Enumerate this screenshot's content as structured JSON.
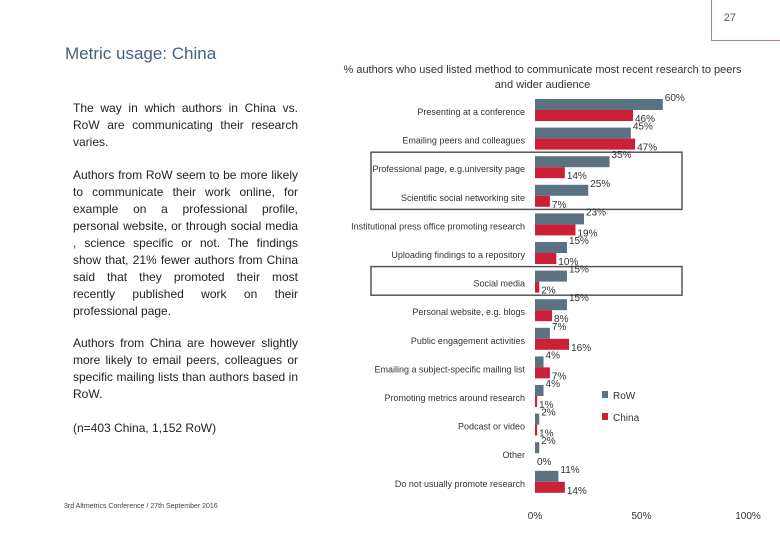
{
  "page": {
    "number": "27",
    "title": "Metric usage: China",
    "paragraphs": [
      "The way in which authors in China vs. RoW are communicating their research varies.",
      "Authors from RoW seem to be more likely to communicate their work online, for example on a professional profile, personal website, or through social media , science specific or not. The findings show that, 21% fewer authors from China said that they promoted their most recently published work on their professional page.",
      "Authors from China are however slightly more likely to email peers, colleagues or specific mailing lists than authors based in RoW.",
      "(n=403 China, 1,152 RoW)"
    ],
    "footer_sup": "3rd",
    "footer": " Altmetrics Conference / 27th September 2016"
  },
  "colors": {
    "row": "#5b7282",
    "china": "#cc1f38",
    "highlight": "#555555"
  },
  "chart_data": {
    "type": "bar",
    "orientation": "horizontal",
    "title": "% authors who used listed method to communicate most recent research to peers and wider audience",
    "categories": [
      "Presenting at a conference",
      "Emailing peers and colleagues",
      "Professional page, e.g.university page",
      "Scientific social networking site",
      "Institutional press office promoting research",
      "Uploading findings to a repository",
      "Social media",
      "Personal website, e.g. blogs",
      "Public engagement activities",
      "Emailing a subject-specific mailing list",
      "Promoting metrics around research",
      "Podcast or video",
      "Other",
      "Do not usually promote research"
    ],
    "series": [
      {
        "name": "RoW",
        "values": [
          60,
          45,
          35,
          25,
          23,
          15,
          15,
          15,
          7,
          4,
          4,
          2,
          2,
          11
        ],
        "labels": [
          "60%",
          "45%",
          "35%",
          "25%",
          "23%",
          "15%",
          "15%",
          "15%",
          "7%",
          "4%",
          "4%",
          "2%",
          "2%",
          "11%"
        ]
      },
      {
        "name": "China",
        "values": [
          46,
          47,
          14,
          7,
          19,
          10,
          2,
          8,
          16,
          7,
          1,
          1,
          0,
          14
        ],
        "labels": [
          "46%",
          "47%",
          "14%",
          "7%",
          "19%",
          "10%",
          "2%",
          "8%",
          "16%",
          "7%",
          "1%",
          "1%",
          "0%",
          "14%"
        ]
      }
    ],
    "highlighted": [
      "Professional page, e.g.university page",
      "Scientific social networking site",
      "Social media"
    ],
    "x_ticks": [
      "0%",
      "50%",
      "100%"
    ],
    "xlim": [
      0,
      100
    ],
    "legend_position": "right"
  }
}
